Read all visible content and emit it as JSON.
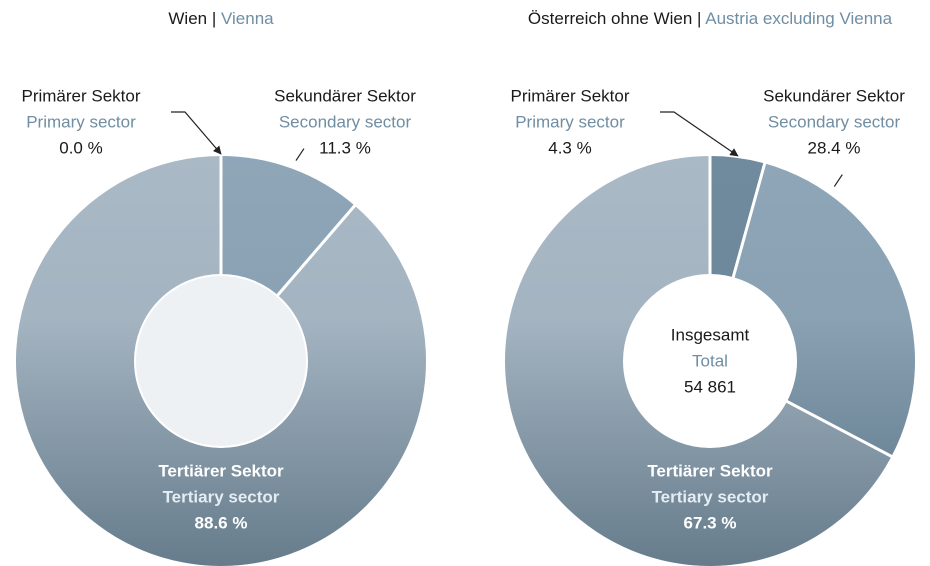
{
  "chart_data": [
    {
      "type": "donut",
      "title": "Wien |",
      "title_en": "Vienna",
      "categories": [
        "Primärer Sektor",
        "Sekundärer Sektor",
        "Tertiärer Sektor"
      ],
      "categories_en": [
        "Primary sector",
        "Secondary sector",
        "Tertiary sector"
      ],
      "values": [
        0.0,
        11.3,
        88.6
      ],
      "value_labels": [
        "0.0 %",
        "11.3 %",
        "88.6 %"
      ],
      "colors": [
        "#6f8b9d",
        "#8ea6b7",
        "#aab9c6"
      ],
      "center_color": "#eef1f4"
    },
    {
      "type": "donut",
      "title": "Österreich ohne Wien |",
      "title_en": "Austria excluding Vienna",
      "categories": [
        "Primärer Sektor",
        "Sekundärer Sektor",
        "Tertiärer Sektor"
      ],
      "categories_en": [
        "Primary sector",
        "Secondary sector",
        "Tertiary sector"
      ],
      "values": [
        4.3,
        28.4,
        67.3
      ],
      "value_labels": [
        "4.3 %",
        "28.4 %",
        "67.3 %"
      ],
      "colors": [
        "#6f8b9d",
        "#8ea6b7",
        "#aab9c6"
      ],
      "center_color": "#ffffff",
      "total": {
        "label": "Insgesamt",
        "label_en": "Total",
        "value": "54 861"
      }
    }
  ]
}
